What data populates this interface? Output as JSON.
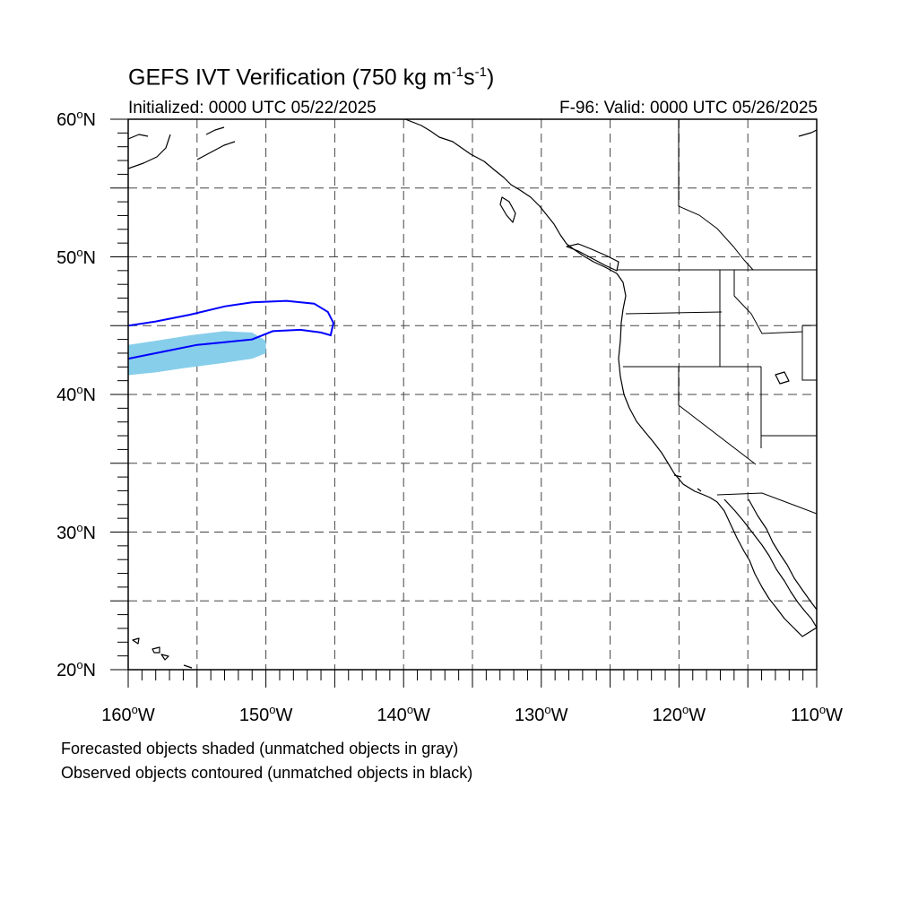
{
  "header": {
    "title_main": "GEFS IVT Verification (750 kg m",
    "title_exp1": "-1",
    "title_mid": "s",
    "title_exp2": "-1",
    "title_end": ")",
    "initialized": "Initialized: 0000 UTC 05/22/2025",
    "valid": "F-96: Valid: 0000 UTC 05/26/2025"
  },
  "axes": {
    "lat_labels": [
      {
        "num": "60",
        "hem": "N",
        "value": 60
      },
      {
        "num": "50",
        "hem": "N",
        "value": 50
      },
      {
        "num": "40",
        "hem": "N",
        "value": 40
      },
      {
        "num": "30",
        "hem": "N",
        "value": 30
      },
      {
        "num": "20",
        "hem": "N",
        "value": 20
      }
    ],
    "lon_labels": [
      {
        "num": "160",
        "hem": "W",
        "value": -160
      },
      {
        "num": "150",
        "hem": "W",
        "value": -150
      },
      {
        "num": "140",
        "hem": "W",
        "value": -140
      },
      {
        "num": "130",
        "hem": "W",
        "value": -130
      },
      {
        "num": "120",
        "hem": "W",
        "value": -120
      },
      {
        "num": "110",
        "hem": "W",
        "value": -110
      }
    ],
    "lat_range": [
      20,
      60
    ],
    "lon_range": [
      -160,
      -110
    ],
    "grid": "dashed every 5 degrees"
  },
  "objects": {
    "forecast_fill_color": "#87ceeb",
    "observed_contour_color": "#0000ff",
    "forecast_object": [
      [
        -160,
        43.6
      ],
      [
        -158,
        43.9
      ],
      [
        -155.5,
        44.3
      ],
      [
        -153,
        44.6
      ],
      [
        -151,
        44.5
      ],
      [
        -150,
        43.9
      ],
      [
        -150,
        43.0
      ],
      [
        -151,
        42.6
      ],
      [
        -153,
        42.3
      ],
      [
        -156,
        41.9
      ],
      [
        -158,
        41.6
      ],
      [
        -160,
        41.4
      ]
    ],
    "observed_object": [
      [
        -160,
        45.0
      ],
      [
        -158,
        45.3
      ],
      [
        -155.5,
        45.8
      ],
      [
        -153,
        46.4
      ],
      [
        -151,
        46.7
      ],
      [
        -148.5,
        46.8
      ],
      [
        -146.5,
        46.6
      ],
      [
        -145.5,
        46.0
      ],
      [
        -145.1,
        45.2
      ],
      [
        -145.3,
        44.3
      ],
      [
        -146.0,
        44.5
      ],
      [
        -147.5,
        44.7
      ],
      [
        -149.5,
        44.6
      ],
      [
        -151,
        44.0
      ],
      [
        -153,
        43.8
      ],
      [
        -155,
        43.6
      ],
      [
        -157,
        43.2
      ],
      [
        -158.5,
        42.9
      ],
      [
        -160,
        42.6
      ]
    ]
  },
  "footer": {
    "note1": "Forecasted objects shaded (unmatched objects in gray)",
    "note2": "Observed objects contoured (unmatched objects in black)"
  }
}
